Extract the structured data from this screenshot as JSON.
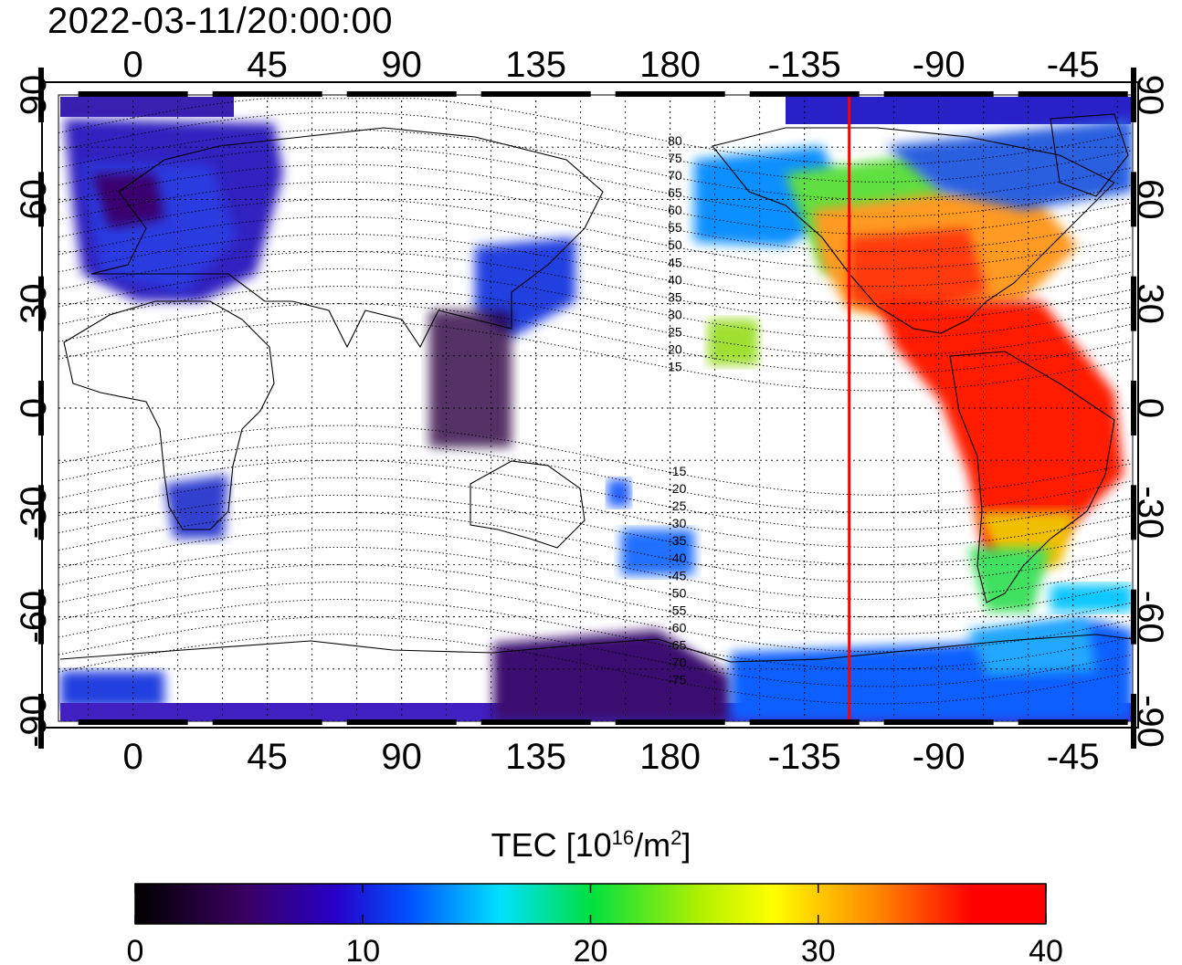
{
  "title": "2022-03-11/20:00:00",
  "map": {
    "lon_ticks_top": [
      "0",
      "45",
      "90",
      "135",
      "180",
      "-135",
      "-90",
      "-45"
    ],
    "lon_ticks_bottom": [
      "0",
      "45",
      "90",
      "135",
      "180",
      "-135",
      "-90",
      "-45"
    ],
    "lat_ticks_left": [
      "90",
      "60",
      "30",
      "0",
      "-30",
      "-60",
      "-90"
    ],
    "lat_ticks_right": [
      "90",
      "60",
      "30",
      "0",
      "-30",
      "-60",
      "-90"
    ],
    "lon_values": [
      0,
      45,
      90,
      135,
      180,
      -135,
      -90,
      -45
    ],
    "lat_values": [
      90,
      60,
      30,
      0,
      -30,
      -60,
      -90
    ],
    "magnetic_latitude_labels": [
      "80",
      "75",
      "70",
      "65",
      "60",
      "55",
      "50",
      "45",
      "40",
      "35",
      "30",
      "25",
      "20",
      "15",
      "-15",
      "-20",
      "-25",
      "-30",
      "-35",
      "-40",
      "-45",
      "-50",
      "-55",
      "-60",
      "-65",
      "-70",
      "-75"
    ],
    "magnetic_latitude_values": [
      80,
      75,
      70,
      65,
      60,
      55,
      50,
      45,
      40,
      35,
      30,
      25,
      20,
      15,
      -15,
      -20,
      -25,
      -30,
      -35,
      -40,
      -45,
      -50,
      -55,
      -60,
      -65,
      -70,
      -75
    ],
    "subsolar_line_lon": -120,
    "subsolar_line_color": "#ff0000"
  },
  "colorbar": {
    "title_prefix": "TEC  [10",
    "title_sup1": "16",
    "title_mid": "/m",
    "title_sup2": "2",
    "title_suffix": "]",
    "tick_labels": [
      "0",
      "10",
      "20",
      "30",
      "40"
    ],
    "min": 0,
    "max": 40,
    "colors": [
      "#000000",
      "#3a0060",
      "#2800c8",
      "#0050ff",
      "#00e0ff",
      "#00e040",
      "#b0f000",
      "#ffff00",
      "#ff8000",
      "#ff0000"
    ]
  }
}
